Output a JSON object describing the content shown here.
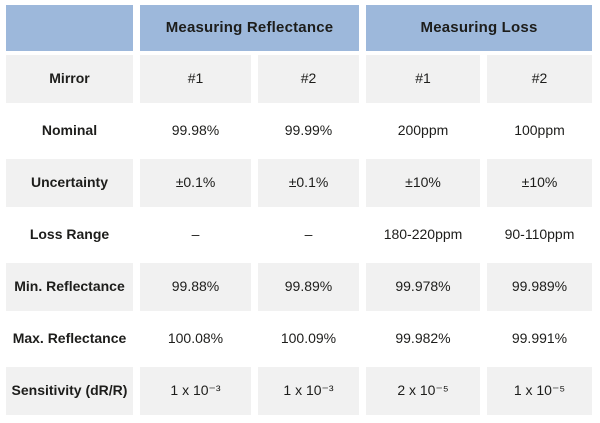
{
  "chart_data": {
    "type": "table",
    "column_groups": [
      {
        "label": "Measuring Reflectance",
        "span": 2
      },
      {
        "label": "Measuring Loss",
        "span": 2
      }
    ],
    "corner_label": "",
    "rows": [
      {
        "label": "Mirror",
        "values": [
          "#1",
          "#2",
          "#1",
          "#2"
        ]
      },
      {
        "label": "Nominal",
        "values": [
          "99.98%",
          "99.99%",
          "200ppm",
          "100ppm"
        ]
      },
      {
        "label": "Uncertainty",
        "values": [
          "±0.1%",
          "±0.1%",
          "±10%",
          "±10%"
        ]
      },
      {
        "label": "Loss Range",
        "values": [
          "–",
          "–",
          "180-220ppm",
          "90-110ppm"
        ]
      },
      {
        "label": "Min. Reflectance",
        "values": [
          "99.88%",
          "99.89%",
          "99.978%",
          "99.989%"
        ]
      },
      {
        "label": "Max. Reflectance",
        "values": [
          "100.08%",
          "100.09%",
          "99.982%",
          "99.991%"
        ]
      },
      {
        "label": "Sensitivity (dR/R)",
        "values": [
          "1 x 10⁻³",
          "1 x 10⁻³",
          "2 x 10⁻⁵",
          "1 x 10⁻⁵"
        ]
      }
    ],
    "layout_hints": {
      "striped_rows": "even rows shaded",
      "legend": "none",
      "grid": "white gaps between cells"
    },
    "colors": {
      "header_bg": "#9db8db",
      "row_alt_bg": "#f1f1f1",
      "row_bg": "#ffffff",
      "text": "#1d1d1b",
      "gap": "#ffffff"
    }
  }
}
